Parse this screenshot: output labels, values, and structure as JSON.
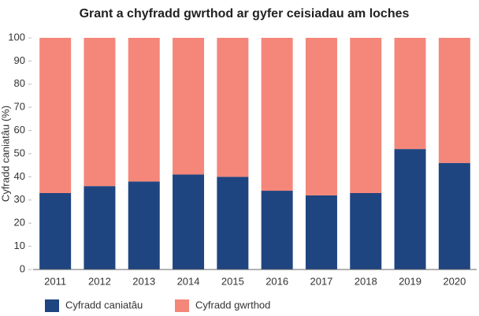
{
  "chart_data": {
    "type": "stacked_bar",
    "title": "Grant a chyfradd gwrthod ar gyfer ceisiadau am loches",
    "y_label": "Cyfradd caniatâu (%)",
    "categories": [
      "2011",
      "2012",
      "2013",
      "2014",
      "2015",
      "2016",
      "2017",
      "2018",
      "2019",
      "2020"
    ],
    "series": [
      {
        "name": "Cyfradd caniatâu",
        "color": "#1f4580",
        "values": [
          33,
          36,
          38,
          41,
          40,
          34,
          32,
          33,
          52,
          46
        ]
      },
      {
        "name": "Cyfradd gwrthod",
        "color": "#f4877a",
        "values": [
          67,
          64,
          62,
          59,
          60,
          66,
          68,
          67,
          48,
          54
        ]
      }
    ],
    "ylim": [
      0,
      100
    ],
    "yticks": [
      0,
      10,
      20,
      30,
      40,
      50,
      60,
      70,
      80,
      90,
      100
    ],
    "grid": false,
    "legend": "bottom"
  }
}
